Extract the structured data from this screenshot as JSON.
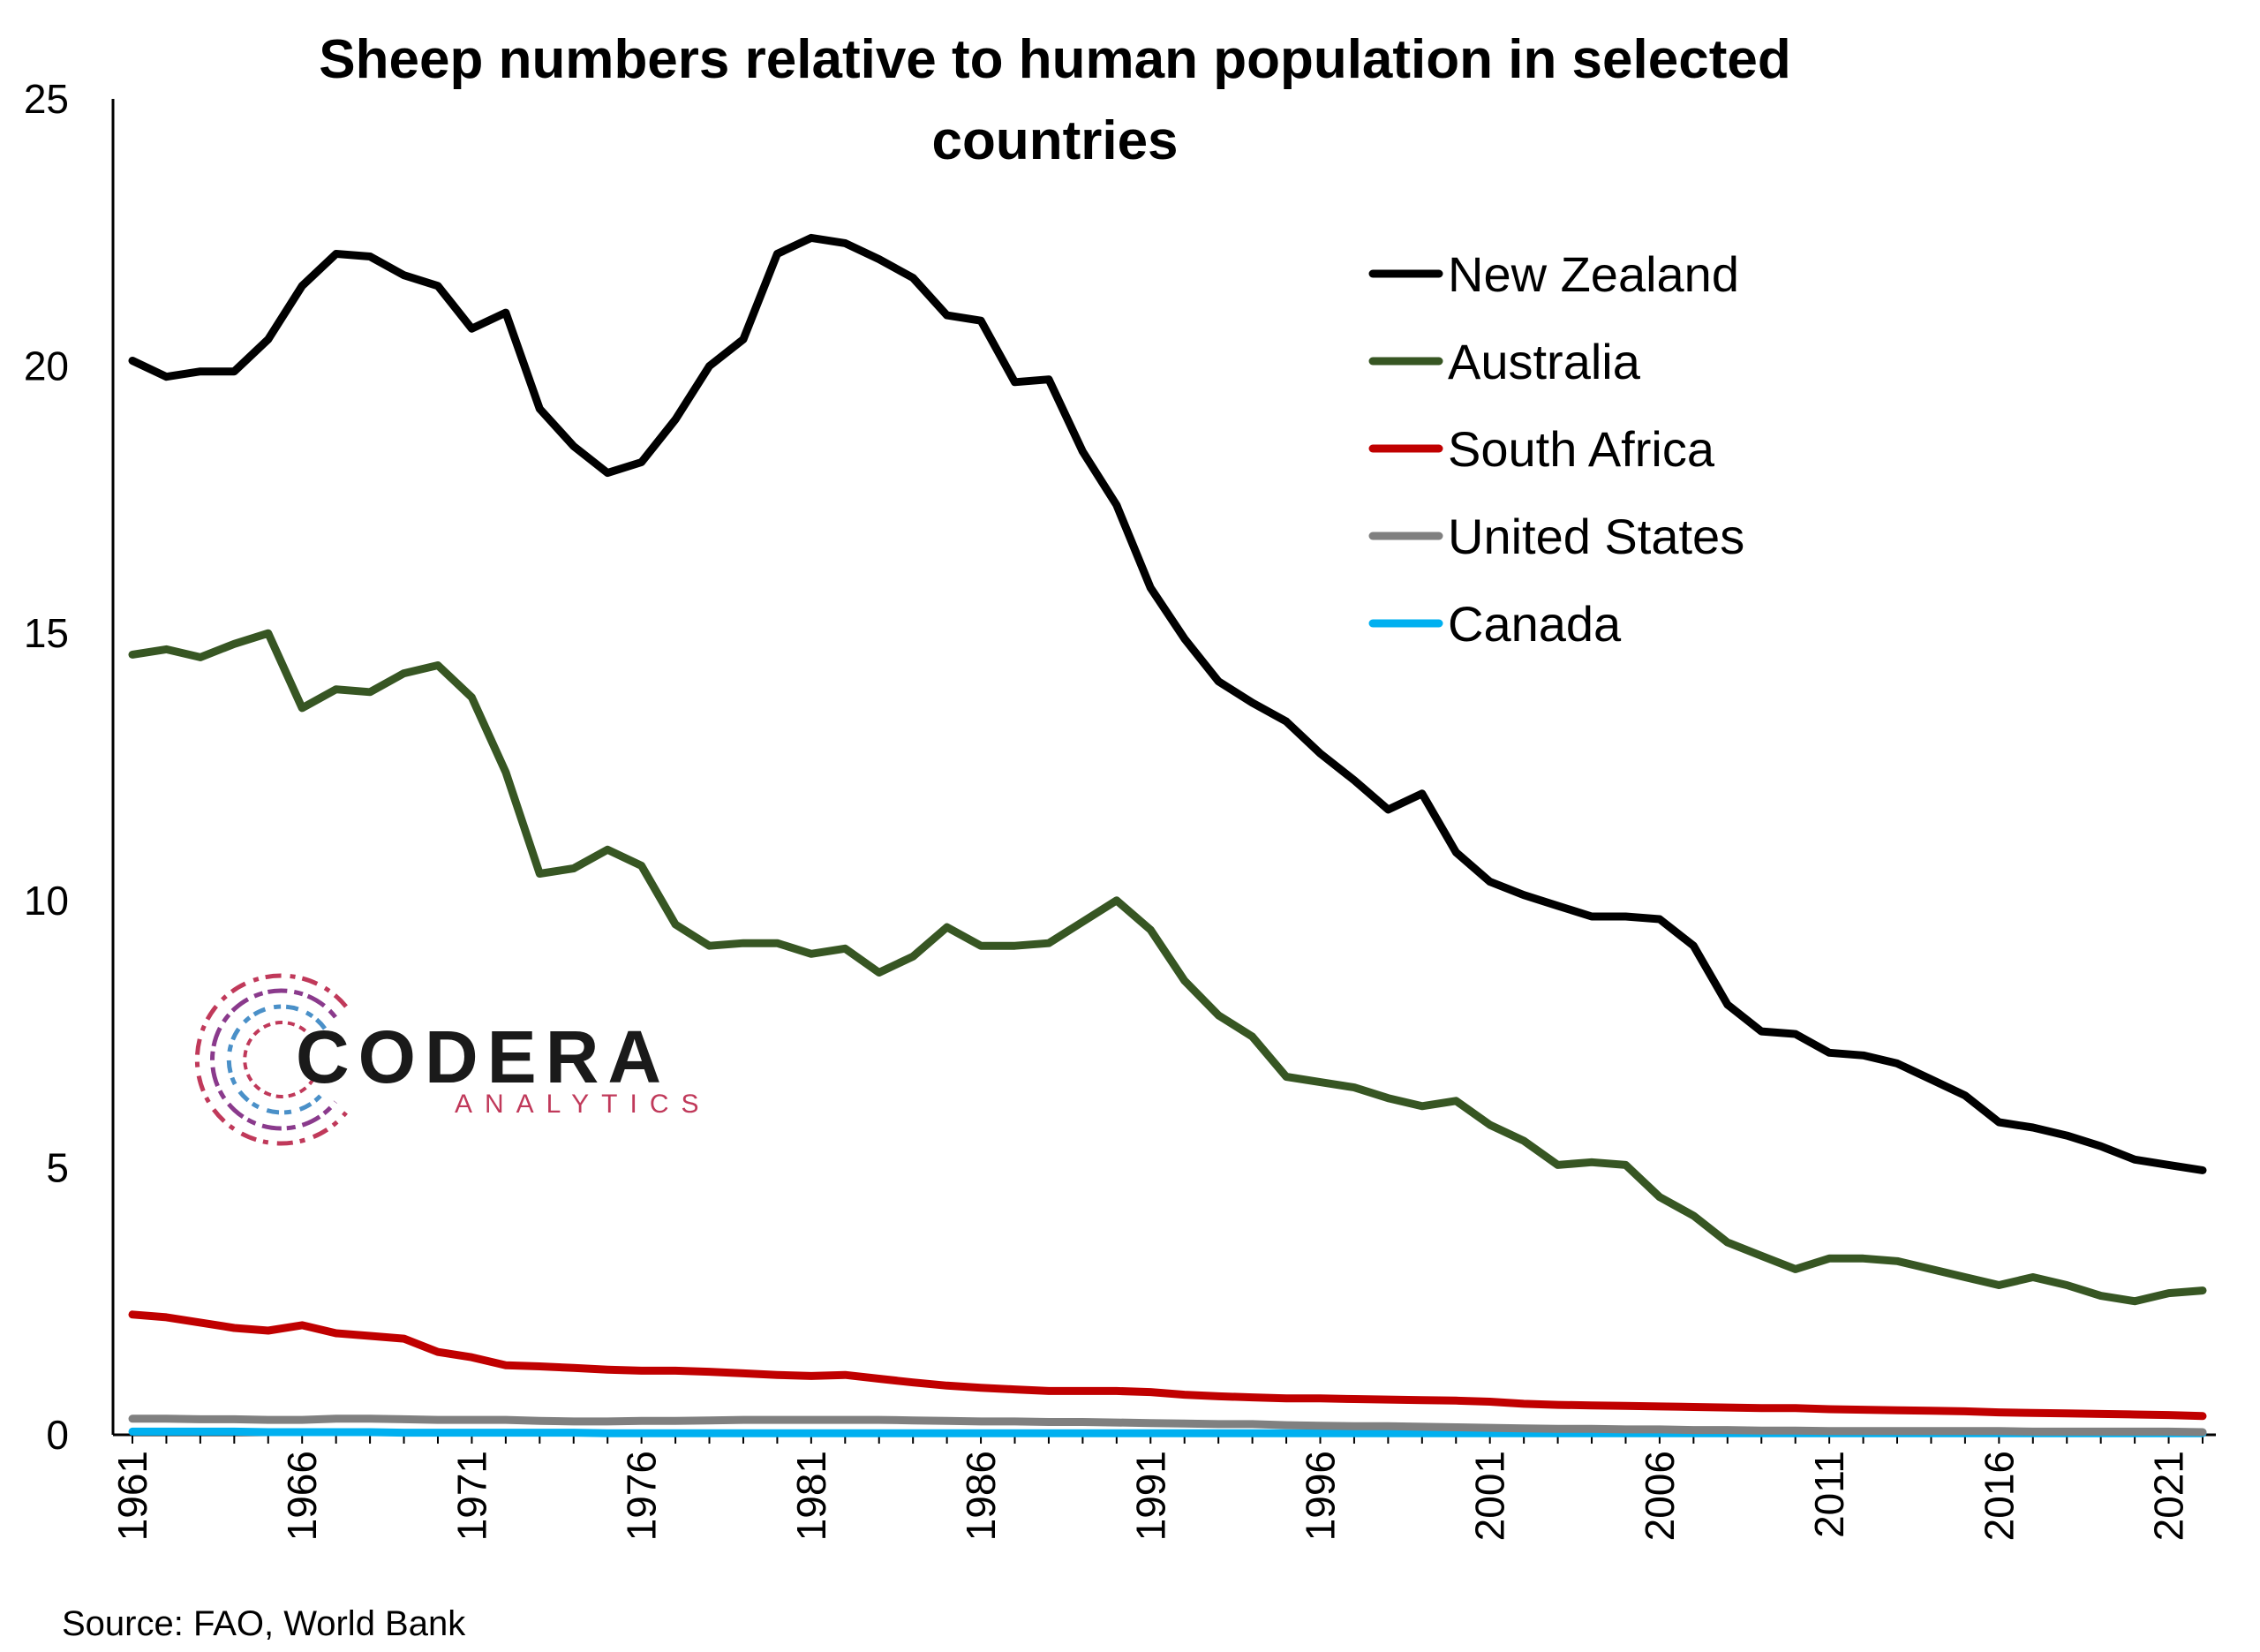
{
  "colors": {
    "new_zealand": "#000000",
    "australia": "#375623",
    "south_africa": "#C00000",
    "united_states": "#808080",
    "canada": "#00B0F0",
    "logo_red": "#C0395A",
    "logo_blue": "#4A90C8"
  },
  "logo": {
    "name": "CODERA",
    "sub": "ANALYTICS"
  },
  "source": "Source: FAO, World Bank",
  "chart_data": {
    "type": "line",
    "title_line1": "Sheep numbers relative to human population in selected",
    "title_line2": "countries",
    "ylim": [
      0,
      25
    ],
    "yticks": [
      "0",
      "5",
      "10",
      "15",
      "20",
      "25"
    ],
    "xlabels": [
      "1961",
      "1966",
      "1971",
      "1976",
      "1981",
      "1986",
      "1991",
      "1996",
      "2001",
      "2006",
      "2011",
      "2016",
      "2021"
    ],
    "legend_position": "top-right",
    "x": [
      1961,
      1962,
      1963,
      1964,
      1965,
      1966,
      1967,
      1968,
      1969,
      1970,
      1971,
      1972,
      1973,
      1974,
      1975,
      1976,
      1977,
      1978,
      1979,
      1980,
      1981,
      1982,
      1983,
      1984,
      1985,
      1986,
      1987,
      1988,
      1989,
      1990,
      1991,
      1992,
      1993,
      1994,
      1995,
      1996,
      1997,
      1998,
      1999,
      2000,
      2001,
      2002,
      2003,
      2004,
      2005,
      2006,
      2007,
      2008,
      2009,
      2010,
      2011,
      2012,
      2013,
      2014,
      2015,
      2016,
      2017,
      2018,
      2019,
      2020,
      2021,
      2022
    ],
    "series": [
      {
        "name": "New Zealand",
        "color": "#000000",
        "values": [
          20.1,
          19.8,
          19.9,
          19.9,
          20.5,
          21.5,
          22.1,
          22.05,
          21.7,
          21.5,
          20.7,
          21.0,
          19.2,
          18.5,
          18.0,
          18.2,
          19.0,
          20.0,
          20.5,
          22.1,
          22.4,
          22.3,
          22.0,
          21.65,
          20.95,
          20.85,
          19.7,
          19.75,
          18.4,
          17.4,
          15.85,
          14.9,
          14.1,
          13.7,
          13.35,
          12.75,
          12.25,
          11.7,
          12.0,
          10.9,
          10.35,
          10.1,
          9.9,
          9.7,
          9.7,
          9.65,
          9.15,
          8.05,
          7.55,
          7.5,
          7.15,
          7.1,
          6.95,
          6.65,
          6.35,
          5.85,
          5.75,
          5.6,
          5.4,
          5.15,
          5.05,
          4.95
        ]
      },
      {
        "name": "Australia",
        "color": "#375623",
        "values": [
          14.6,
          14.7,
          14.55,
          14.8,
          15.0,
          13.6,
          13.95,
          13.9,
          14.25,
          14.4,
          13.8,
          12.4,
          10.5,
          10.6,
          10.95,
          10.65,
          9.55,
          9.15,
          9.2,
          9.2,
          9.0,
          9.1,
          8.65,
          8.95,
          9.5,
          9.15,
          9.15,
          9.2,
          9.6,
          10.0,
          9.45,
          8.5,
          7.85,
          7.45,
          6.7,
          6.6,
          6.5,
          6.3,
          6.15,
          6.25,
          5.8,
          5.5,
          5.05,
          5.1,
          5.05,
          4.45,
          4.1,
          3.6,
          3.35,
          3.1,
          3.3,
          3.3,
          3.25,
          3.1,
          2.95,
          2.8,
          2.95,
          2.8,
          2.6,
          2.5,
          2.65,
          2.7
        ]
      },
      {
        "name": "South Africa",
        "color": "#C00000",
        "values": [
          2.25,
          2.2,
          2.1,
          2.0,
          1.95,
          2.05,
          1.9,
          1.85,
          1.8,
          1.55,
          1.45,
          1.3,
          1.28,
          1.25,
          1.22,
          1.2,
          1.2,
          1.18,
          1.15,
          1.12,
          1.1,
          1.12,
          1.05,
          0.98,
          0.92,
          0.88,
          0.85,
          0.82,
          0.82,
          0.82,
          0.8,
          0.75,
          0.72,
          0.7,
          0.68,
          0.68,
          0.67,
          0.66,
          0.65,
          0.64,
          0.62,
          0.58,
          0.56,
          0.55,
          0.54,
          0.53,
          0.52,
          0.51,
          0.5,
          0.5,
          0.48,
          0.47,
          0.46,
          0.45,
          0.44,
          0.42,
          0.41,
          0.4,
          0.39,
          0.38,
          0.37,
          0.35
        ]
      },
      {
        "name": "United States",
        "color": "#808080",
        "values": [
          0.3,
          0.3,
          0.29,
          0.29,
          0.28,
          0.28,
          0.3,
          0.3,
          0.29,
          0.28,
          0.28,
          0.28,
          0.26,
          0.25,
          0.25,
          0.26,
          0.26,
          0.27,
          0.28,
          0.28,
          0.28,
          0.28,
          0.28,
          0.27,
          0.26,
          0.25,
          0.25,
          0.24,
          0.24,
          0.23,
          0.22,
          0.21,
          0.2,
          0.2,
          0.18,
          0.17,
          0.16,
          0.16,
          0.15,
          0.14,
          0.13,
          0.12,
          0.11,
          0.11,
          0.1,
          0.1,
          0.09,
          0.09,
          0.08,
          0.08,
          0.07,
          0.07,
          0.07,
          0.07,
          0.07,
          0.07,
          0.06,
          0.06,
          0.06,
          0.06,
          0.06,
          0.05
        ]
      },
      {
        "name": "Canada",
        "color": "#00B0F0",
        "values": [
          0.06,
          0.06,
          0.06,
          0.06,
          0.05,
          0.05,
          0.05,
          0.05,
          0.04,
          0.04,
          0.04,
          0.04,
          0.04,
          0.04,
          0.03,
          0.03,
          0.03,
          0.03,
          0.03,
          0.03,
          0.03,
          0.03,
          0.03,
          0.03,
          0.03,
          0.03,
          0.03,
          0.03,
          0.03,
          0.03,
          0.03,
          0.03,
          0.03,
          0.03,
          0.03,
          0.03,
          0.03,
          0.03,
          0.03,
          0.03,
          0.03,
          0.03,
          0.03,
          0.03,
          0.03,
          0.03,
          0.03,
          0.03,
          0.03,
          0.03,
          0.03,
          0.03,
          0.03,
          0.03,
          0.03,
          0.03,
          0.03,
          0.03,
          0.03,
          0.03,
          0.03,
          0.03
        ]
      }
    ]
  }
}
